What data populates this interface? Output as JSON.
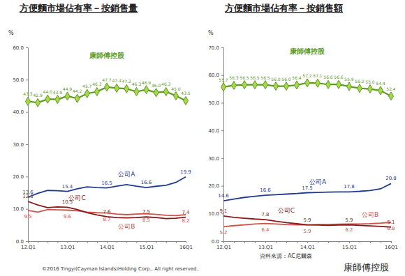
{
  "chart_data": [
    {
      "type": "line",
      "title": "方便麵市場佔有率－按銷售量",
      "y_label": "%",
      "categories": [
        "12.Q1",
        null,
        null,
        null,
        "13.Q1",
        null,
        null,
        null,
        "14.Q1",
        null,
        null,
        null,
        "15.Q1",
        null,
        null,
        null,
        "16Q1"
      ],
      "ylim": [
        0,
        60
      ],
      "yticks": [
        {
          "value": 0,
          "label": "0.0"
        },
        {
          "value": 10,
          "label": "10.0"
        },
        {
          "value": 20,
          "label": "20.0"
        },
        {
          "value": 30,
          "label": "30.0"
        },
        {
          "value": 40,
          "label": "40.0"
        },
        {
          "value": 50,
          "label": "50.0"
        },
        {
          "value": 60,
          "label": "60.0"
        }
      ],
      "grid": false,
      "data_labels": true,
      "series": [
        {
          "name": "康師傅控股",
          "color": "#5a9a1e",
          "marker": "diamond",
          "line_style": "solid",
          "values": [
            43.3,
            42.9,
            44.0,
            43.9,
            44.9,
            44.2,
            45.7,
            46.3,
            47.7,
            47.4,
            47.2,
            46.3,
            46.9,
            46.0,
            46.3,
            45.0,
            43.5
          ],
          "value_labels": [
            "43.3",
            "42.9",
            "44.0",
            "43.9",
            "44.9",
            "44.2",
            "45.7",
            "46.3",
            "47.7",
            "47.4",
            "47.2",
            "46.3",
            "46.9",
            "46.0",
            "46.3",
            "45.0",
            "43.5"
          ]
        },
        {
          "name": "公司A",
          "color": "#1f3a93",
          "marker": "none",
          "line_style": "solid",
          "values": [
            13.6,
            14.8,
            15.7,
            15.6,
            15.4,
            16.2,
            16.8,
            16.6,
            16.5,
            17.0,
            17.5,
            17.0,
            16.6,
            17.0,
            17.3,
            18.2,
            19.9
          ],
          "value_labels": [
            "13.6",
            null,
            null,
            null,
            "15.4",
            null,
            null,
            null,
            "16.5",
            null,
            null,
            null,
            "16.6",
            null,
            null,
            null,
            "19.9"
          ]
        },
        {
          "name": "公司B",
          "color": "#d0504a",
          "marker": "none",
          "line_style": "solid",
          "values": [
            9.5,
            9.0,
            9.8,
            9.7,
            9.6,
            9.4,
            9.0,
            8.8,
            8.7,
            8.4,
            8.2,
            8.4,
            8.5,
            8.3,
            8.0,
            7.9,
            8.2
          ],
          "value_labels": [
            "9.5",
            null,
            null,
            null,
            "9.6",
            null,
            null,
            null,
            "8.7",
            null,
            null,
            null,
            "8.5",
            null,
            null,
            null,
            "8.2"
          ]
        },
        {
          "name": "公司C",
          "color": "#8b1a1a",
          "marker": "none",
          "line_style": "solid",
          "values": [
            12.3,
            11.2,
            10.4,
            10.6,
            10.5,
            9.8,
            8.8,
            8.1,
            7.6,
            7.3,
            7.2,
            7.3,
            7.5,
            7.3,
            7.0,
            7.1,
            7.4
          ],
          "value_labels": [
            "12.3",
            null,
            null,
            null,
            "10.5",
            null,
            null,
            null,
            "7.6",
            null,
            null,
            null,
            "7.5",
            null,
            null,
            null,
            "7.4"
          ]
        }
      ]
    },
    {
      "type": "line",
      "title": "方便麵市場佔有率－按銷售額",
      "y_label": "%",
      "categories": [
        "12.Q1",
        null,
        null,
        null,
        "13.Q1",
        null,
        null,
        null,
        "14.Q1",
        null,
        null,
        null,
        "15.Q1",
        null,
        null,
        null,
        "16Q1"
      ],
      "ylim": [
        0,
        70
      ],
      "yticks": [
        {
          "value": 0,
          "label": "0.0"
        },
        {
          "value": 10,
          "label": "10.0"
        },
        {
          "value": 20,
          "label": "20.0"
        },
        {
          "value": 30,
          "label": "30.0"
        },
        {
          "value": 40,
          "label": "40.0"
        },
        {
          "value": 50,
          "label": "50.0"
        },
        {
          "value": 60,
          "label": "60.0"
        },
        {
          "value": 70,
          "label": "70.0"
        }
      ],
      "grid": false,
      "data_labels": true,
      "series": [
        {
          "name": "康師傅控股",
          "color": "#5a9a1e",
          "marker": "diamond",
          "line_style": "solid",
          "values": [
            55.7,
            56.3,
            56.5,
            56.5,
            56.5,
            56.0,
            56.0,
            56.4,
            57.2,
            57.1,
            56.6,
            56.6,
            55.9,
            55.2,
            55.0,
            54.4,
            52.4
          ],
          "value_labels": [
            "55.7",
            "56.3",
            "56.5",
            "56.5",
            "56.5",
            "56.0",
            "56.0",
            "56.4",
            "57.2",
            "57.1",
            "56.6",
            "56.6",
            "55.9",
            "55.2",
            "55.0",
            "54.4",
            "52.4"
          ]
        },
        {
          "name": "公司A",
          "color": "#1f3a93",
          "marker": "none",
          "line_style": "solid",
          "values": [
            14.6,
            15.2,
            15.8,
            16.2,
            16.6,
            16.8,
            17.0,
            17.2,
            17.5,
            17.6,
            17.7,
            17.8,
            17.8,
            18.0,
            18.3,
            18.9,
            20.8
          ],
          "value_labels": [
            "14.6",
            null,
            null,
            null,
            "16.6",
            null,
            null,
            null,
            "17.5",
            null,
            null,
            null,
            "17.8",
            null,
            null,
            null,
            "20.8"
          ]
        },
        {
          "name": "公司B",
          "color": "#d0504a",
          "marker": "none",
          "line_style": "solid",
          "values": [
            5.2,
            5.6,
            5.9,
            6.2,
            6.4,
            6.2,
            6.0,
            5.9,
            5.9,
            6.0,
            6.0,
            6.1,
            6.2,
            6.2,
            6.3,
            6.5,
            6.8
          ],
          "value_labels": [
            "5.2",
            null,
            null,
            null,
            "6.4",
            null,
            null,
            null,
            "5.9",
            null,
            null,
            null,
            "6.2",
            null,
            null,
            null,
            "6.8"
          ]
        },
        {
          "name": "公司C",
          "color": "#8b1a1a",
          "marker": "none",
          "line_style": "solid",
          "values": [
            9.1,
            8.6,
            8.3,
            8.0,
            7.8,
            7.2,
            6.7,
            6.3,
            5.9,
            5.8,
            5.7,
            5.8,
            5.9,
            5.7,
            5.5,
            5.3,
            5.1
          ],
          "value_labels": [
            "9.1",
            null,
            null,
            null,
            "7.8",
            null,
            null,
            null,
            "5.9",
            null,
            null,
            null,
            "5.9",
            null,
            null,
            null,
            "5.1"
          ]
        }
      ]
    }
  ],
  "footer": {
    "copyright": "©2016 Tingyi(Cayman Islands)Holding Corp., All right reserved.",
    "source": "資料來源：AC尼爾森",
    "logo": "康師傅控股"
  }
}
